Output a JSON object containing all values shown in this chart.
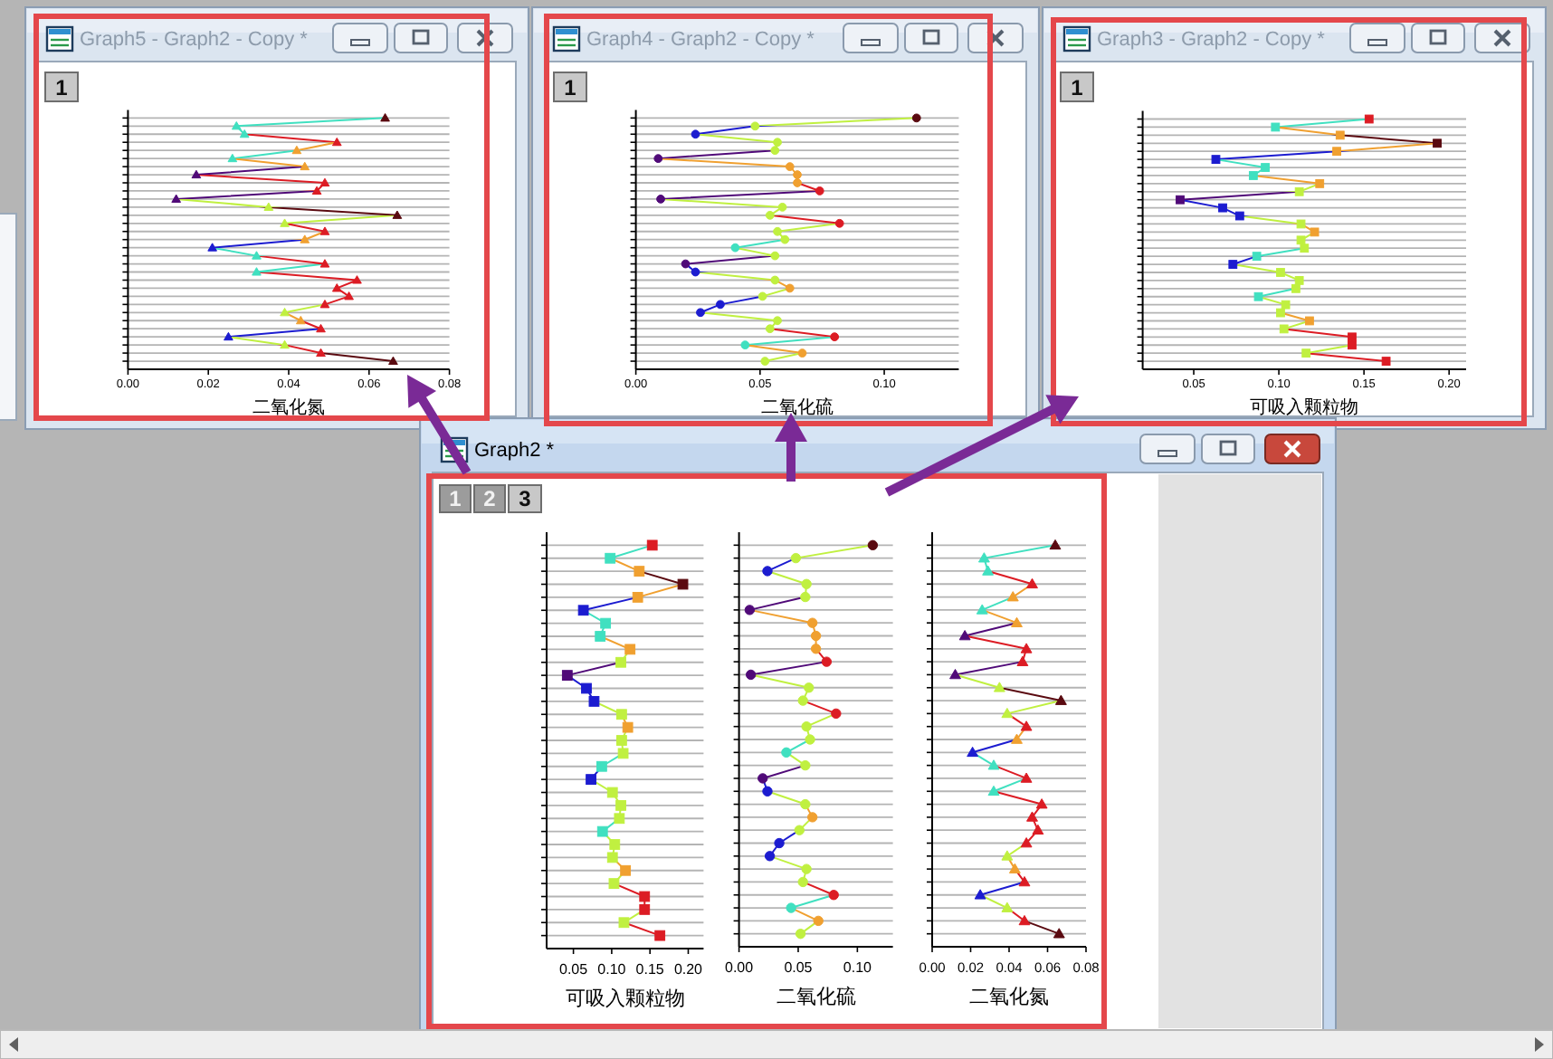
{
  "chart_data": [
    {
      "type": "line",
      "title": "Graph5 - Graph2 - Copy *",
      "xlabel": "二氧化氮",
      "annotations": [
        "1"
      ],
      "orientation": "horizontal",
      "categories": [
        null,
        null,
        null,
        null,
        null,
        null,
        null,
        null,
        null,
        null,
        null,
        null,
        null,
        null,
        null,
        null,
        null,
        null,
        null,
        null,
        null,
        null,
        null,
        null,
        null,
        null,
        null,
        null,
        null,
        null,
        null
      ],
      "values": [
        0.064,
        0.027,
        0.029,
        0.052,
        0.042,
        0.026,
        0.044,
        0.017,
        0.049,
        0.047,
        0.012,
        0.035,
        0.067,
        0.039,
        0.049,
        0.044,
        0.021,
        0.032,
        0.049,
        0.032,
        0.057,
        0.052,
        0.055,
        0.049,
        0.039,
        0.043,
        0.048,
        0.025,
        0.039,
        0.048,
        0.066
      ],
      "colors": [
        "#5a0a10",
        "#40e0c0",
        "#40e0c0",
        "#dc1c24",
        "#f0a030",
        "#40e0c0",
        "#f0a030",
        "#500a78",
        "#dc1c24",
        "#dc1c24",
        "#500a78",
        "#c0f040",
        "#5a0a10",
        "#c0f040",
        "#dc1c24",
        "#f0a030",
        "#1c1cd0",
        "#40e0c0",
        "#dc1c24",
        "#40e0c0",
        "#dc1c24",
        "#dc1c24",
        "#dc1c24",
        "#dc1c24",
        "#c0f040",
        "#f0a030",
        "#dc1c24",
        "#1c1cd0",
        "#c0f040",
        "#dc1c24",
        "#5a0a10"
      ],
      "xlim": [
        0,
        0.08
      ],
      "xticks": [
        {
          "value": 0,
          "label": "0.00"
        },
        0.02,
        0.04,
        0.06,
        0.08
      ],
      "grid": "y",
      "marker": "triangle",
      "line_style": "solid"
    },
    {
      "type": "line",
      "title": "Graph4 - Graph2 - Copy *",
      "xlabel": "二氧化硫",
      "annotations": [
        "1"
      ],
      "orientation": "horizontal",
      "categories": [
        null,
        null,
        null,
        null,
        null,
        null,
        null,
        null,
        null,
        null,
        null,
        null,
        null,
        null,
        null,
        null,
        null,
        null,
        null,
        null,
        null,
        null,
        null,
        null,
        null,
        null,
        null,
        null,
        null,
        null,
        null
      ],
      "values": [
        0.113,
        0.048,
        0.024,
        0.057,
        0.056,
        0.009,
        0.062,
        0.065,
        0.065,
        0.074,
        0.01,
        0.059,
        0.054,
        0.082,
        0.057,
        0.06,
        0.04,
        0.056,
        0.02,
        0.024,
        0.056,
        0.062,
        0.051,
        0.034,
        0.026,
        0.057,
        0.054,
        0.08,
        0.044,
        0.067,
        0.052
      ],
      "colors": [
        "#5a0a10",
        "#c0f040",
        "#1c1cd0",
        "#c0f040",
        "#c0f040",
        "#500a78",
        "#f0a030",
        "#f0a030",
        "#f0a030",
        "#dc1c24",
        "#500a78",
        "#c0f040",
        "#c0f040",
        "#dc1c24",
        "#c0f040",
        "#c0f040",
        "#40e0c0",
        "#c0f040",
        "#500a78",
        "#1c1cd0",
        "#c0f040",
        "#f0a030",
        "#c0f040",
        "#1c1cd0",
        "#1c1cd0",
        "#c0f040",
        "#c0f040",
        "#dc1c24",
        "#40e0c0",
        "#f0a030",
        "#c0f040"
      ],
      "xlim": [
        0,
        0.13
      ],
      "xticks": [
        {
          "value": 0,
          "label": "0.00"
        },
        0.05,
        {
          "value": 0.1,
          "label": "0.10"
        }
      ],
      "grid": "y",
      "marker": "circle",
      "line_style": "solid"
    },
    {
      "type": "line",
      "title": "Graph3 - Graph2 - Copy *",
      "xlabel": "可吸入颗粒物",
      "annotations": [
        "1"
      ],
      "orientation": "horizontal",
      "categories": [
        null,
        null,
        null,
        null,
        null,
        null,
        null,
        null,
        null,
        null,
        null,
        null,
        null,
        null,
        null,
        null,
        null,
        null,
        null,
        null,
        null,
        null,
        null,
        null,
        null,
        null,
        null,
        null,
        null,
        null,
        null
      ],
      "values": [
        0.153,
        0.098,
        0.136,
        0.193,
        0.134,
        0.063,
        0.092,
        0.085,
        0.124,
        0.112,
        0.042,
        0.067,
        0.077,
        0.113,
        0.121,
        0.113,
        0.115,
        0.087,
        0.073,
        0.101,
        0.112,
        0.11,
        0.088,
        0.104,
        0.101,
        0.118,
        0.103,
        0.143,
        0.143,
        0.116,
        0.163
      ],
      "colors": [
        "#dc1c24",
        "#40e0c0",
        "#f0a030",
        "#5a0a10",
        "#f0a030",
        "#1c1cd0",
        "#40e0c0",
        "#40e0c0",
        "#f0a030",
        "#c0f040",
        "#500a78",
        "#1c1cd0",
        "#1c1cd0",
        "#c0f040",
        "#f0a030",
        "#c0f040",
        "#c0f040",
        "#40e0c0",
        "#1c1cd0",
        "#c0f040",
        "#c0f040",
        "#c0f040",
        "#40e0c0",
        "#c0f040",
        "#c0f040",
        "#f0a030",
        "#c0f040",
        "#dc1c24",
        "#dc1c24",
        "#c0f040",
        "#dc1c24"
      ],
      "xlim": [
        0.02,
        0.21
      ],
      "xticks": [
        0.05,
        {
          "value": 0.1,
          "label": "0.10"
        },
        0.15,
        {
          "value": 0.2,
          "label": "0.20"
        }
      ],
      "grid": "y",
      "marker": "square",
      "line_style": "solid"
    },
    {
      "type": "line",
      "title": "Graph2 *",
      "xlabel": "可吸入颗粒物",
      "annotations": [
        "1"
      ],
      "orientation": "horizontal",
      "categories": [
        null,
        null,
        null,
        null,
        null,
        null,
        null,
        null,
        null,
        null,
        null,
        null,
        null,
        null,
        null,
        null,
        null,
        null,
        null,
        null,
        null,
        null,
        null,
        null,
        null,
        null,
        null,
        null,
        null,
        null,
        null
      ],
      "values": [
        0.153,
        0.098,
        0.136,
        0.193,
        0.134,
        0.063,
        0.092,
        0.085,
        0.124,
        0.112,
        0.042,
        0.067,
        0.077,
        0.113,
        0.121,
        0.113,
        0.115,
        0.087,
        0.073,
        0.101,
        0.112,
        0.11,
        0.088,
        0.104,
        0.101,
        0.118,
        0.103,
        0.143,
        0.143,
        0.116,
        0.163
      ],
      "colors": [
        "#dc1c24",
        "#40e0c0",
        "#f0a030",
        "#5a0a10",
        "#f0a030",
        "#1c1cd0",
        "#40e0c0",
        "#40e0c0",
        "#f0a030",
        "#c0f040",
        "#500a78",
        "#1c1cd0",
        "#1c1cd0",
        "#c0f040",
        "#f0a030",
        "#c0f040",
        "#c0f040",
        "#40e0c0",
        "#1c1cd0",
        "#c0f040",
        "#c0f040",
        "#c0f040",
        "#40e0c0",
        "#c0f040",
        "#c0f040",
        "#f0a030",
        "#c0f040",
        "#dc1c24",
        "#dc1c24",
        "#c0f040",
        "#dc1c24"
      ],
      "xlim": [
        0.015,
        0.22
      ],
      "xticks": [
        0.05,
        {
          "value": 0.1,
          "label": "0.10"
        },
        0.15,
        {
          "value": 0.2,
          "label": "0.20"
        }
      ],
      "grid": "y",
      "marker": "square",
      "line_style": "solid"
    },
    {
      "type": "line",
      "xlabel": "二氧化硫",
      "annotations": [
        "2"
      ],
      "orientation": "horizontal",
      "categories": [
        null,
        null,
        null,
        null,
        null,
        null,
        null,
        null,
        null,
        null,
        null,
        null,
        null,
        null,
        null,
        null,
        null,
        null,
        null,
        null,
        null,
        null,
        null,
        null,
        null,
        null,
        null,
        null,
        null,
        null,
        null
      ],
      "values": [
        0.113,
        0.048,
        0.024,
        0.057,
        0.056,
        0.009,
        0.062,
        0.065,
        0.065,
        0.074,
        0.01,
        0.059,
        0.054,
        0.082,
        0.057,
        0.06,
        0.04,
        0.056,
        0.02,
        0.024,
        0.056,
        0.062,
        0.051,
        0.034,
        0.026,
        0.057,
        0.054,
        0.08,
        0.044,
        0.067,
        0.052
      ],
      "colors": [
        "#5a0a10",
        "#c0f040",
        "#1c1cd0",
        "#c0f040",
        "#c0f040",
        "#500a78",
        "#f0a030",
        "#f0a030",
        "#f0a030",
        "#dc1c24",
        "#500a78",
        "#c0f040",
        "#c0f040",
        "#dc1c24",
        "#c0f040",
        "#c0f040",
        "#40e0c0",
        "#c0f040",
        "#500a78",
        "#1c1cd0",
        "#c0f040",
        "#f0a030",
        "#c0f040",
        "#1c1cd0",
        "#1c1cd0",
        "#c0f040",
        "#c0f040",
        "#dc1c24",
        "#40e0c0",
        "#f0a030",
        "#c0f040"
      ],
      "xlim": [
        0,
        0.13
      ],
      "xticks": [
        {
          "value": 0,
          "label": "0.00"
        },
        0.05,
        {
          "value": 0.1,
          "label": "0.10"
        }
      ],
      "grid": "y",
      "marker": "circle",
      "line_style": "solid"
    },
    {
      "type": "line",
      "xlabel": "二氧化氮",
      "annotations": [
        "3"
      ],
      "orientation": "horizontal",
      "categories": [
        null,
        null,
        null,
        null,
        null,
        null,
        null,
        null,
        null,
        null,
        null,
        null,
        null,
        null,
        null,
        null,
        null,
        null,
        null,
        null,
        null,
        null,
        null,
        null,
        null,
        null,
        null,
        null,
        null,
        null,
        null
      ],
      "values": [
        0.064,
        0.027,
        0.029,
        0.052,
        0.042,
        0.026,
        0.044,
        0.017,
        0.049,
        0.047,
        0.012,
        0.035,
        0.067,
        0.039,
        0.049,
        0.044,
        0.021,
        0.032,
        0.049,
        0.032,
        0.057,
        0.052,
        0.055,
        0.049,
        0.039,
        0.043,
        0.048,
        0.025,
        0.039,
        0.048,
        0.066
      ],
      "colors": [
        "#5a0a10",
        "#40e0c0",
        "#40e0c0",
        "#dc1c24",
        "#f0a030",
        "#40e0c0",
        "#f0a030",
        "#500a78",
        "#dc1c24",
        "#dc1c24",
        "#500a78",
        "#c0f040",
        "#5a0a10",
        "#c0f040",
        "#dc1c24",
        "#f0a030",
        "#1c1cd0",
        "#40e0c0",
        "#dc1c24",
        "#40e0c0",
        "#dc1c24",
        "#dc1c24",
        "#dc1c24",
        "#dc1c24",
        "#c0f040",
        "#f0a030",
        "#dc1c24",
        "#1c1cd0",
        "#c0f040",
        "#dc1c24",
        "#5a0a10"
      ],
      "xlim": [
        0,
        0.08
      ],
      "xticks": [
        {
          "value": 0,
          "label": "0.00"
        },
        0.02,
        0.04,
        0.06,
        0.08
      ],
      "grid": "y",
      "marker": "triangle",
      "line_style": "solid"
    }
  ]
}
